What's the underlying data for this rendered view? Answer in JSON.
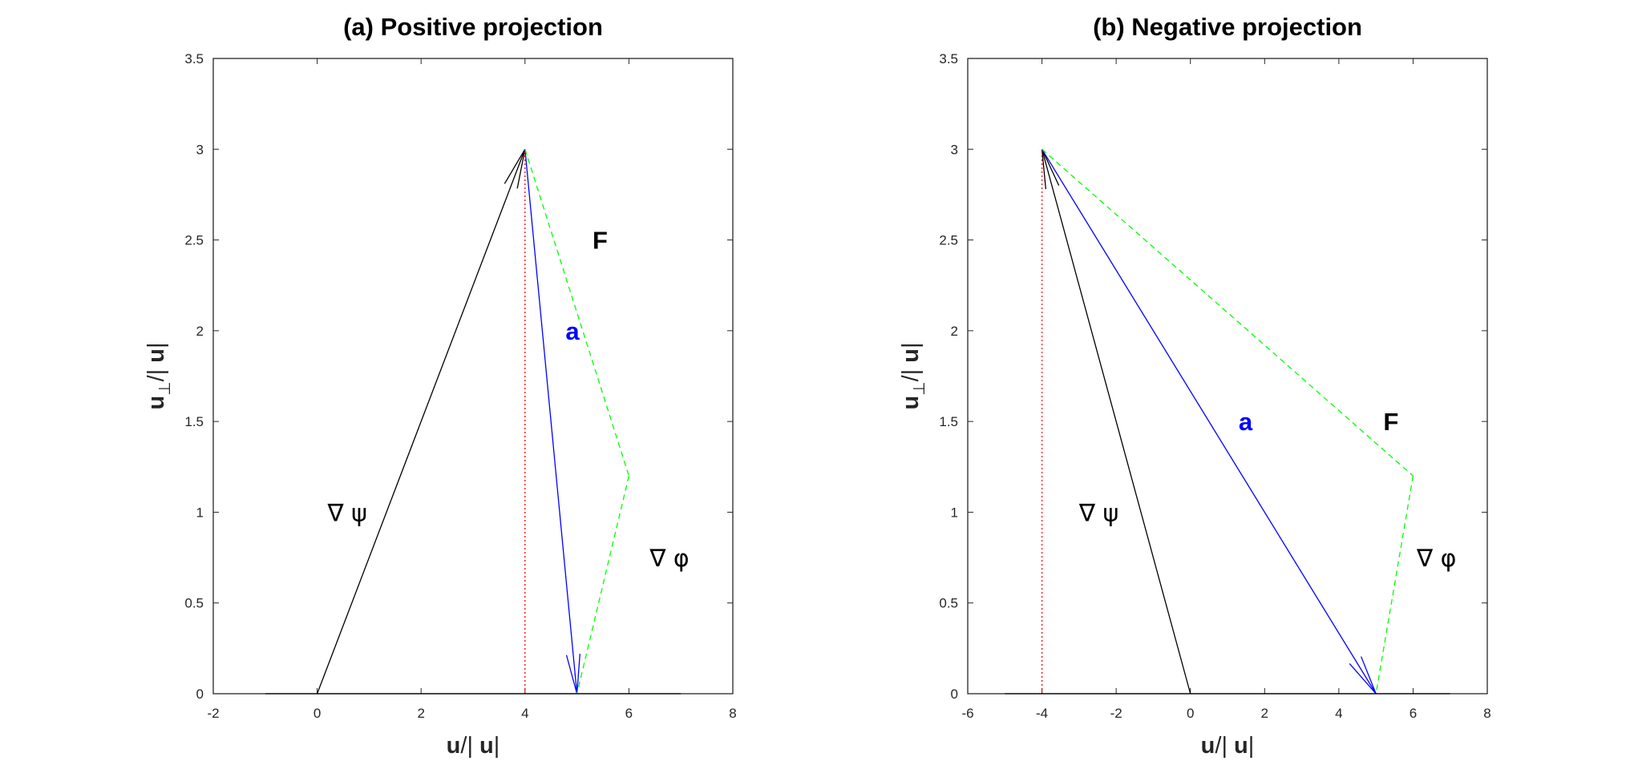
{
  "chart_data": [
    {
      "type": "line",
      "title": "(a) Positive projection",
      "xlabel": {
        "bold": "u",
        "rest": "/| ",
        "bold2": "u",
        "end": "|"
      },
      "ylabel": {
        "bold": "u",
        "sub": "⊥",
        "rest": "/| ",
        "bold2": "u",
        "end": "|"
      },
      "xlim": [
        -2,
        8
      ],
      "ylim": [
        0,
        3.5
      ],
      "xticks": [
        "-2",
        "0",
        "2",
        "4",
        "6",
        "8"
      ],
      "yticks": [
        "0",
        "0.5",
        "1",
        "1.5",
        "2",
        "2.5",
        "3",
        "3.5"
      ],
      "series": [
        {
          "name": "grad_psi",
          "color": "#000000",
          "style": "solid",
          "x": [
            0,
            4
          ],
          "y": [
            0,
            3
          ],
          "arrow_head": "end"
        },
        {
          "name": "a",
          "color": "#0000ff",
          "style": "solid",
          "x": [
            4,
            5
          ],
          "y": [
            3,
            0
          ],
          "arrow_head": "end"
        },
        {
          "name": "F",
          "color": "#00ff00",
          "style": "dashed",
          "x": [
            4,
            6
          ],
          "y": [
            3,
            1.2
          ]
        },
        {
          "name": "grad_phi",
          "color": "#00ff00",
          "style": "dashed",
          "x": [
            6,
            5
          ],
          "y": [
            1.2,
            0
          ]
        },
        {
          "name": "projection",
          "color": "#ff0000",
          "style": "dotted",
          "x": [
            4,
            4
          ],
          "y": [
            0,
            3
          ]
        },
        {
          "name": "baseline",
          "color": "#000000",
          "style": "solid",
          "x": [
            -1,
            7
          ],
          "y": [
            0,
            0
          ]
        }
      ],
      "annotations": [
        {
          "text": "∇ ψ",
          "x": 0.2,
          "y": 1.0,
          "color": "#000000",
          "bold": false
        },
        {
          "text": "a",
          "x": 4.78,
          "y": 2.0,
          "color": "#0000ff",
          "bold": true
        },
        {
          "text": "F",
          "x": 5.3,
          "y": 2.5,
          "color": "#000000",
          "bold": true
        },
        {
          "text": "∇ φ",
          "x": 6.4,
          "y": 0.75,
          "color": "#000000",
          "bold": false
        }
      ]
    },
    {
      "type": "line",
      "title": "(b) Negative projection",
      "xlabel": {
        "bold": "u",
        "rest": "/| ",
        "bold2": "u",
        "end": "|"
      },
      "ylabel": {
        "bold": "u",
        "sub": "⊥",
        "rest": "/| ",
        "bold2": "u",
        "end": "|"
      },
      "xlim": [
        -6,
        8
      ],
      "ylim": [
        0,
        3.5
      ],
      "xticks": [
        "-6",
        "-4",
        "-2",
        "0",
        "2",
        "4",
        "6",
        "8"
      ],
      "yticks": [
        "0",
        "0.5",
        "1",
        "1.5",
        "2",
        "2.5",
        "3",
        "3.5"
      ],
      "series": [
        {
          "name": "grad_psi",
          "color": "#000000",
          "style": "solid",
          "x": [
            0,
            -4
          ],
          "y": [
            0,
            3
          ],
          "arrow_head": "end"
        },
        {
          "name": "a",
          "color": "#0000ff",
          "style": "solid",
          "x": [
            -4,
            5
          ],
          "y": [
            3,
            0
          ],
          "arrow_head": "end"
        },
        {
          "name": "F",
          "color": "#00ff00",
          "style": "dashed",
          "x": [
            -4,
            6
          ],
          "y": [
            3,
            1.2
          ]
        },
        {
          "name": "grad_phi",
          "color": "#00ff00",
          "style": "dashed",
          "x": [
            6,
            5
          ],
          "y": [
            1.2,
            0
          ]
        },
        {
          "name": "projection",
          "color": "#ff0000",
          "style": "dotted",
          "x": [
            -4,
            -4
          ],
          "y": [
            0,
            3
          ]
        },
        {
          "name": "baseline",
          "color": "#000000",
          "style": "solid",
          "x": [
            -5,
            7
          ],
          "y": [
            0,
            0
          ]
        }
      ],
      "annotations": [
        {
          "text": "∇ ψ",
          "x": -3.0,
          "y": 1.0,
          "color": "#000000",
          "bold": false
        },
        {
          "text": "a",
          "x": 1.3,
          "y": 1.5,
          "color": "#0000ff",
          "bold": true
        },
        {
          "text": "F",
          "x": 5.2,
          "y": 1.5,
          "color": "#000000",
          "bold": true
        },
        {
          "text": "∇ φ",
          "x": 6.1,
          "y": 0.75,
          "color": "#000000",
          "bold": false
        }
      ]
    }
  ]
}
